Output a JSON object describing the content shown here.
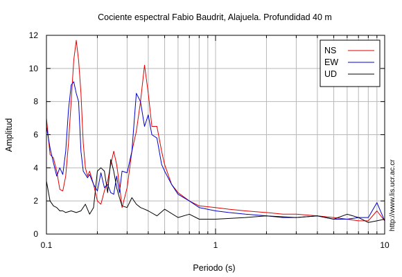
{
  "chart_data": {
    "type": "line",
    "title": "Cociente espectral Fabio Baudrit, Alajuela. Profundidad 40 m",
    "xlabel": "Periodo (s)",
    "ylabel": "Amplitud",
    "xscale": "log",
    "xlim": [
      0.1,
      10
    ],
    "ylim": [
      0,
      12
    ],
    "x_ticks": [
      0.1,
      1,
      10
    ],
    "x_tick_labels": [
      "0.1",
      "1",
      "10"
    ],
    "y_ticks": [
      0,
      2,
      4,
      6,
      8,
      10,
      12
    ],
    "y_tick_labels": [
      "0",
      "2",
      "4",
      "6",
      "8",
      "10",
      "12"
    ],
    "grid": true,
    "legend_position": "top-right",
    "credit": "http://www.lis.ucr.ac.cr",
    "series": [
      {
        "name": "NS",
        "color": "#e00000",
        "x": [
          0.1,
          0.105,
          0.11,
          0.115,
          0.12,
          0.125,
          0.13,
          0.135,
          0.14,
          0.145,
          0.15,
          0.155,
          0.16,
          0.165,
          0.17,
          0.175,
          0.18,
          0.19,
          0.2,
          0.21,
          0.22,
          0.23,
          0.24,
          0.25,
          0.26,
          0.27,
          0.28,
          0.3,
          0.32,
          0.34,
          0.36,
          0.38,
          0.4,
          0.42,
          0.45,
          0.48,
          0.5,
          0.55,
          0.6,
          0.7,
          0.8,
          1.0,
          1.2,
          1.5,
          2.0,
          2.5,
          3.0,
          4.0,
          5.0,
          6.0,
          7.0,
          8.0,
          9.0,
          10.0
        ],
        "values": [
          7.0,
          4.8,
          4.6,
          3.8,
          2.7,
          2.6,
          3.5,
          5.5,
          8.0,
          10.5,
          11.7,
          10.5,
          8.5,
          5.5,
          4.0,
          3.5,
          3.8,
          3.0,
          2.0,
          1.8,
          2.6,
          3.2,
          4.2,
          5.0,
          4.2,
          3.0,
          1.6,
          2.8,
          5.0,
          6.2,
          8.0,
          10.2,
          8.5,
          6.5,
          6.5,
          5.0,
          4.2,
          3.0,
          2.5,
          2.0,
          1.7,
          1.6,
          1.5,
          1.4,
          1.3,
          1.2,
          1.2,
          1.1,
          1.0,
          0.9,
          0.8,
          0.8,
          1.4,
          0.8
        ]
      },
      {
        "name": "EW",
        "color": "#0000cc",
        "x": [
          0.1,
          0.105,
          0.11,
          0.115,
          0.12,
          0.125,
          0.13,
          0.135,
          0.14,
          0.145,
          0.15,
          0.155,
          0.16,
          0.165,
          0.17,
          0.175,
          0.18,
          0.19,
          0.2,
          0.21,
          0.22,
          0.23,
          0.24,
          0.25,
          0.26,
          0.27,
          0.28,
          0.3,
          0.32,
          0.34,
          0.36,
          0.38,
          0.4,
          0.42,
          0.45,
          0.48,
          0.5,
          0.55,
          0.6,
          0.7,
          0.8,
          1.0,
          1.2,
          1.5,
          2.0,
          2.5,
          3.0,
          4.0,
          5.0,
          6.0,
          7.0,
          8.0,
          9.0,
          10.0
        ],
        "values": [
          6.5,
          5.2,
          4.3,
          3.5,
          4.0,
          3.6,
          5.0,
          7.5,
          9.0,
          9.2,
          8.5,
          8.0,
          5.0,
          3.8,
          3.6,
          3.4,
          3.6,
          3.0,
          2.6,
          3.7,
          2.8,
          3.0,
          2.5,
          2.4,
          3.5,
          2.5,
          3.8,
          3.7,
          5.0,
          8.5,
          8.0,
          6.5,
          7.2,
          6.0,
          5.8,
          4.2,
          3.8,
          3.0,
          2.4,
          2.0,
          1.6,
          1.4,
          1.3,
          1.2,
          1.1,
          1.0,
          1.0,
          1.1,
          0.9,
          0.9,
          1.0,
          1.0,
          1.9,
          0.8
        ]
      },
      {
        "name": "UD",
        "color": "#000000",
        "x": [
          0.1,
          0.105,
          0.11,
          0.115,
          0.12,
          0.125,
          0.13,
          0.14,
          0.15,
          0.16,
          0.17,
          0.18,
          0.19,
          0.2,
          0.21,
          0.22,
          0.23,
          0.24,
          0.25,
          0.26,
          0.27,
          0.28,
          0.3,
          0.32,
          0.34,
          0.36,
          0.38,
          0.4,
          0.45,
          0.5,
          0.6,
          0.7,
          0.8,
          1.0,
          1.5,
          2.0,
          3.0,
          4.0,
          5.0,
          6.0,
          7.0,
          8.0,
          9.0,
          10.0
        ],
        "values": [
          3.2,
          2.0,
          1.7,
          1.6,
          1.4,
          1.4,
          1.3,
          1.4,
          1.3,
          1.4,
          1.8,
          1.2,
          1.6,
          3.8,
          4.0,
          3.8,
          2.5,
          4.5,
          3.8,
          2.8,
          2.2,
          1.7,
          1.6,
          2.2,
          1.8,
          1.6,
          1.5,
          1.4,
          1.1,
          1.5,
          1.0,
          1.2,
          0.9,
          0.9,
          1.0,
          1.1,
          1.0,
          1.1,
          0.9,
          1.2,
          1.0,
          0.7,
          0.8,
          0.9
        ]
      }
    ]
  }
}
